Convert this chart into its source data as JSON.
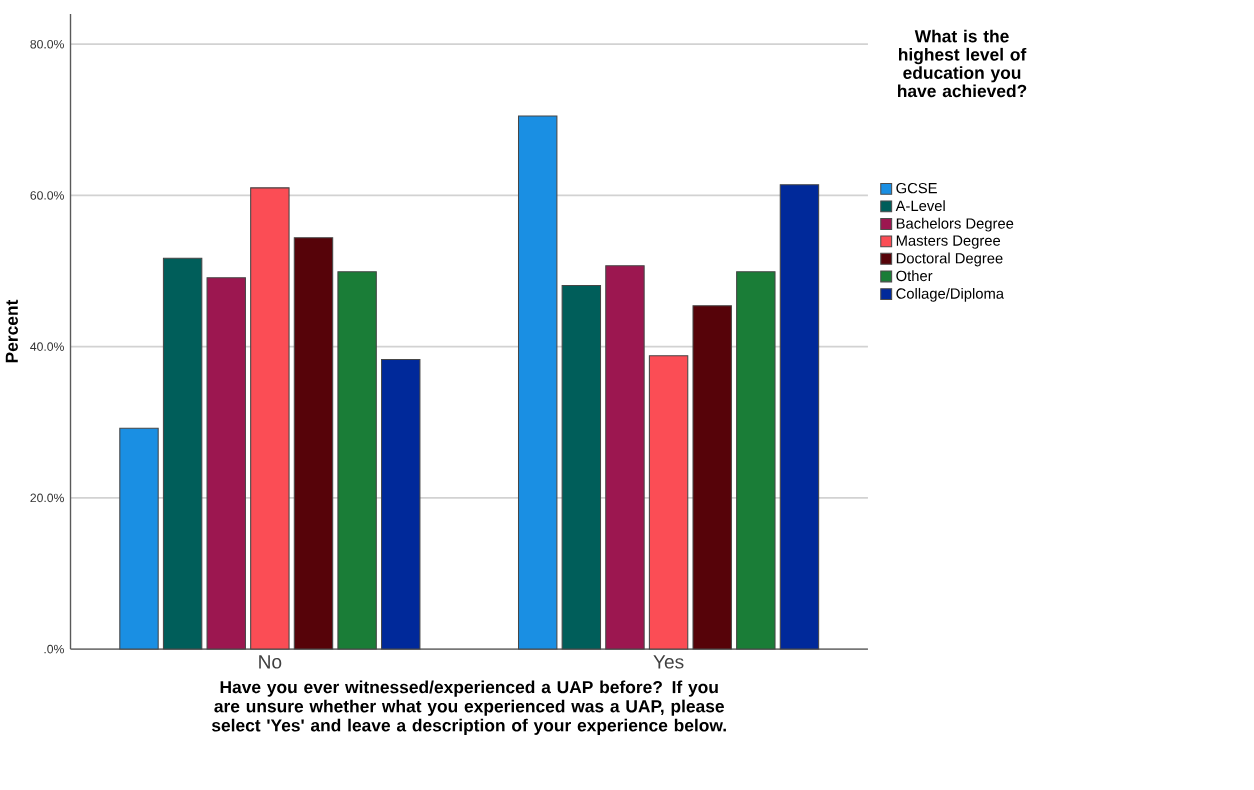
{
  "chart_data": {
    "type": "bar",
    "xlabel": "Have you ever witnessed/experienced a UAP before?    If you are unsure whether what you experienced was a UAP, please select 'Yes' and leave a description of your experience below.",
    "ylabel": "Percent",
    "legend_title": "What is the highest level of education you have achieved?",
    "categories": [
      "No",
      "Yes"
    ],
    "series": [
      {
        "name": "GCSE",
        "color": "#1a8fe3",
        "values": [
          29.2,
          70.5
        ]
      },
      {
        "name": "A-Level",
        "color": "#005e5a",
        "values": [
          51.7,
          48.1
        ]
      },
      {
        "name": "Bachelors Degree",
        "color": "#9c1750",
        "values": [
          49.1,
          50.7
        ]
      },
      {
        "name": "Masters Degree",
        "color": "#fb4d55",
        "values": [
          61.0,
          38.8
        ]
      },
      {
        "name": "Doctoral Degree",
        "color": "#560309",
        "values": [
          54.4,
          45.4
        ]
      },
      {
        "name": "Other",
        "color": "#1a7d37",
        "values": [
          49.9,
          49.9
        ]
      },
      {
        "name": "Collage/Diploma",
        "color": "#00299a",
        "values": [
          38.3,
          61.4
        ]
      }
    ],
    "ylim": [
      0,
      84
    ],
    "yticks": [
      {
        "value": 0,
        "label": ".0%"
      },
      {
        "value": 20,
        "label": "20.0%"
      },
      {
        "value": 40,
        "label": "40.0%"
      },
      {
        "value": 60,
        "label": "60.0%"
      },
      {
        "value": 80,
        "label": "80.0%"
      }
    ],
    "grid": "y",
    "legend": "right"
  }
}
